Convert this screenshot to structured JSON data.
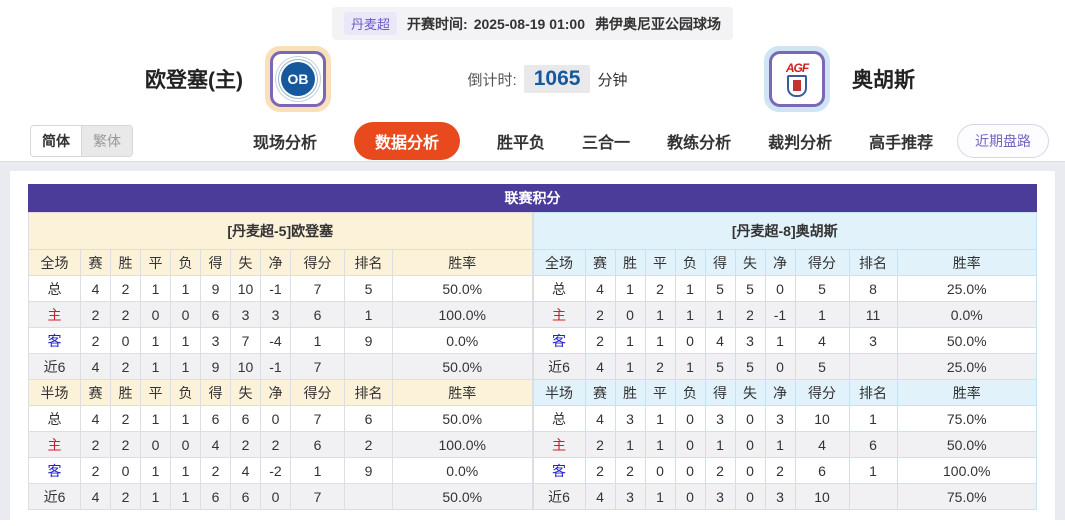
{
  "top_bar": {
    "league_badge": "丹麦超",
    "kickoff_label": "开赛时间:",
    "kickoff_time": "2025-08-19 01:00",
    "venue": "弗伊奥尼亚公园球场"
  },
  "header": {
    "home_team": {
      "name": "欧登塞(主)",
      "logo_text": "OB"
    },
    "away_team": {
      "name": "奥胡斯",
      "logo_text": "AGF"
    },
    "countdown": {
      "label": "倒计时:",
      "value": "1065",
      "unit": "分钟"
    }
  },
  "nav": {
    "lang_toggle": {
      "simplified": "简体",
      "traditional": "繁体",
      "selected": "简体"
    },
    "tabs": [
      {
        "label": "现场分析",
        "active": false
      },
      {
        "label": "数据分析",
        "active": true
      },
      {
        "label": "胜平负",
        "active": false
      },
      {
        "label": "三合一",
        "active": false
      },
      {
        "label": "教练分析",
        "active": false
      },
      {
        "label": "裁判分析",
        "active": false
      },
      {
        "label": "高手推荐",
        "active": false
      }
    ],
    "recent_trends_button": "近期盘路"
  },
  "league_table": {
    "title": "联赛积分",
    "home": {
      "team_header": "[丹麦超-5]欧登塞",
      "full_header": [
        "全场",
        "赛",
        "胜",
        "平",
        "负",
        "得",
        "失",
        "净",
        "得分",
        "排名",
        "胜率"
      ],
      "full_rows": [
        {
          "label": "总",
          "cells": [
            "4",
            "2",
            "1",
            "1",
            "9",
            "10",
            "-1",
            "7",
            "5",
            "50.0%"
          ]
        },
        {
          "label": "主",
          "cells": [
            "2",
            "2",
            "0",
            "0",
            "6",
            "3",
            "3",
            "6",
            "1",
            "100.0%"
          ]
        },
        {
          "label": "客",
          "cells": [
            "2",
            "0",
            "1",
            "1",
            "3",
            "7",
            "-4",
            "1",
            "9",
            "0.0%"
          ]
        },
        {
          "label": "近6",
          "cells": [
            "4",
            "2",
            "1",
            "1",
            "9",
            "10",
            "-1",
            "7",
            "",
            "50.0%"
          ]
        }
      ],
      "half_header": [
        "半场",
        "赛",
        "胜",
        "平",
        "负",
        "得",
        "失",
        "净",
        "得分",
        "排名",
        "胜率"
      ],
      "half_rows": [
        {
          "label": "总",
          "cells": [
            "4",
            "2",
            "1",
            "1",
            "6",
            "6",
            "0",
            "7",
            "6",
            "50.0%"
          ]
        },
        {
          "label": "主",
          "cells": [
            "2",
            "2",
            "0",
            "0",
            "4",
            "2",
            "2",
            "6",
            "2",
            "100.0%"
          ]
        },
        {
          "label": "客",
          "cells": [
            "2",
            "0",
            "1",
            "1",
            "2",
            "4",
            "-2",
            "1",
            "9",
            "0.0%"
          ]
        },
        {
          "label": "近6",
          "cells": [
            "4",
            "2",
            "1",
            "1",
            "6",
            "6",
            "0",
            "7",
            "",
            "50.0%"
          ]
        }
      ]
    },
    "away": {
      "team_header": "[丹麦超-8]奥胡斯",
      "full_header": [
        "全场",
        "赛",
        "胜",
        "平",
        "负",
        "得",
        "失",
        "净",
        "得分",
        "排名",
        "胜率"
      ],
      "full_rows": [
        {
          "label": "总",
          "cells": [
            "4",
            "1",
            "2",
            "1",
            "5",
            "5",
            "0",
            "5",
            "8",
            "25.0%"
          ]
        },
        {
          "label": "主",
          "cells": [
            "2",
            "0",
            "1",
            "1",
            "1",
            "2",
            "-1",
            "1",
            "11",
            "0.0%"
          ]
        },
        {
          "label": "客",
          "cells": [
            "2",
            "1",
            "1",
            "0",
            "4",
            "3",
            "1",
            "4",
            "3",
            "50.0%"
          ]
        },
        {
          "label": "近6",
          "cells": [
            "4",
            "1",
            "2",
            "1",
            "5",
            "5",
            "0",
            "5",
            "",
            "25.0%"
          ]
        }
      ],
      "half_header": [
        "半场",
        "赛",
        "胜",
        "平",
        "负",
        "得",
        "失",
        "净",
        "得分",
        "排名",
        "胜率"
      ],
      "half_rows": [
        {
          "label": "总",
          "cells": [
            "4",
            "3",
            "1",
            "0",
            "3",
            "0",
            "3",
            "10",
            "1",
            "75.0%"
          ]
        },
        {
          "label": "主",
          "cells": [
            "2",
            "1",
            "1",
            "0",
            "1",
            "0",
            "1",
            "4",
            "6",
            "50.0%"
          ]
        },
        {
          "label": "客",
          "cells": [
            "2",
            "2",
            "0",
            "0",
            "2",
            "0",
            "2",
            "6",
            "1",
            "100.0%"
          ]
        },
        {
          "label": "近6",
          "cells": [
            "4",
            "3",
            "1",
            "0",
            "3",
            "0",
            "3",
            "10",
            "",
            "75.0%"
          ]
        }
      ]
    }
  },
  "colors": {
    "active_tab": "#e8491d",
    "title_bar_purple": "#4b3c99",
    "home_header_bg": "#fcf2da",
    "away_header_bg": "#e2f2fb",
    "home_label_red": "#cc2222",
    "away_label_blue": "#2222cc",
    "countdown_value_blue": "#15599c",
    "link_purple": "#7165c4",
    "logo_frame_home": "#f9e0bb",
    "logo_frame_away": "#cfe4f5"
  }
}
